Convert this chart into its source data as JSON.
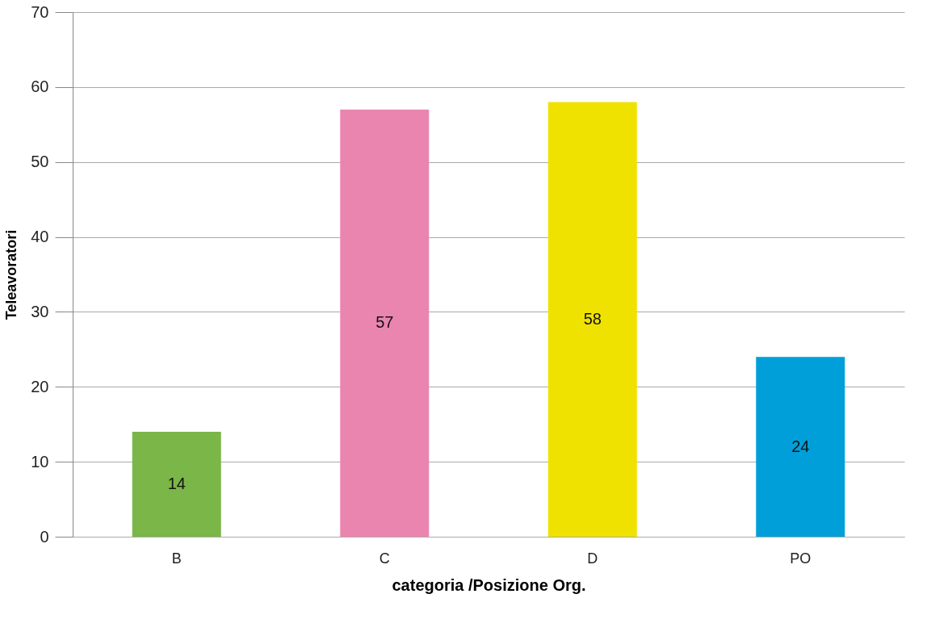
{
  "chart_data": {
    "type": "bar",
    "xlabel": "categoria /Posizione Org.",
    "ylabel": "Teleavoratori",
    "categories": [
      "B",
      "C",
      "D",
      "PO"
    ],
    "values": [
      14,
      57,
      58,
      24
    ],
    "colors": [
      "#7ab648",
      "#ea85b0",
      "#f0e200",
      "#009fd9"
    ],
    "ylim": [
      0,
      70
    ],
    "yticks": [
      0,
      10,
      20,
      30,
      40,
      50,
      60,
      70
    ],
    "grid": "y",
    "data_labels": true,
    "legend": false
  }
}
